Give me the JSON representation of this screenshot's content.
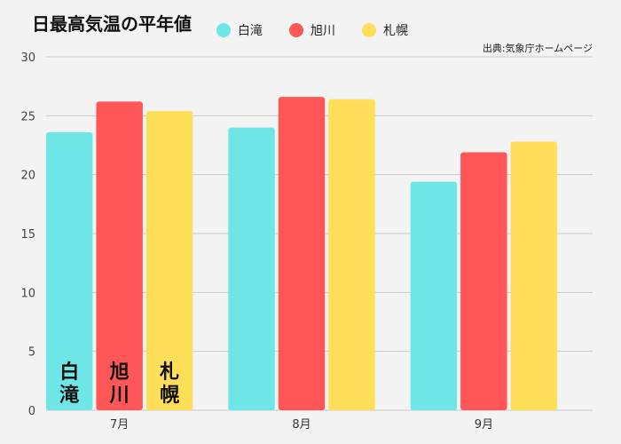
{
  "chart_data": {
    "type": "bar",
    "title": "日最高気温の平年値",
    "source": "出典:気象庁ホームページ",
    "categories": [
      "7月",
      "8月",
      "9月"
    ],
    "series": [
      {
        "name": "白滝",
        "color": "#6ee6e6",
        "values": [
          23.6,
          24.0,
          19.4
        ],
        "label_chars": [
          "白",
          "滝"
        ]
      },
      {
        "name": "旭川",
        "color": "#ff5757",
        "values": [
          26.2,
          26.6,
          21.9
        ],
        "label_chars": [
          "旭",
          "川"
        ]
      },
      {
        "name": "札幌",
        "color": "#ffde59",
        "values": [
          25.4,
          26.4,
          22.8
        ],
        "label_chars": [
          "札",
          "幌"
        ]
      }
    ],
    "ylim": [
      0,
      30
    ],
    "yticks": [
      0,
      5,
      10,
      15,
      20,
      25,
      30
    ],
    "xlabel": "",
    "ylabel": "",
    "grid": true,
    "legend": "top"
  }
}
